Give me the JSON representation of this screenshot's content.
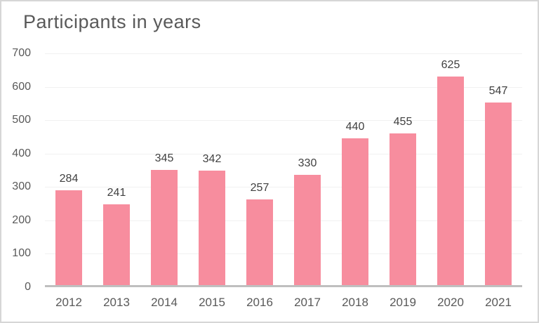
{
  "chart": {
    "title": "Participants in years"
  },
  "chart_data": {
    "type": "bar",
    "title": "Participants in years",
    "categories": [
      "2012",
      "2013",
      "2014",
      "2015",
      "2016",
      "2017",
      "2018",
      "2019",
      "2020",
      "2021"
    ],
    "values": [
      284,
      241,
      345,
      342,
      257,
      330,
      440,
      455,
      625,
      547
    ],
    "xlabel": "",
    "ylabel": "",
    "ylim": [
      0,
      700
    ],
    "yticks": [
      0,
      100,
      200,
      300,
      400,
      500,
      600,
      700
    ],
    "grid": true,
    "legend": false,
    "data_labels": true
  },
  "colors": {
    "bar": "#f78d9e",
    "title_text": "#595959",
    "axis_text": "#595959",
    "value_label_text": "#404040",
    "gridline": "#f1f1f1",
    "baseline": "#bfbfbf",
    "frame_border": "#d6d6d6",
    "background": "#ffffff"
  }
}
